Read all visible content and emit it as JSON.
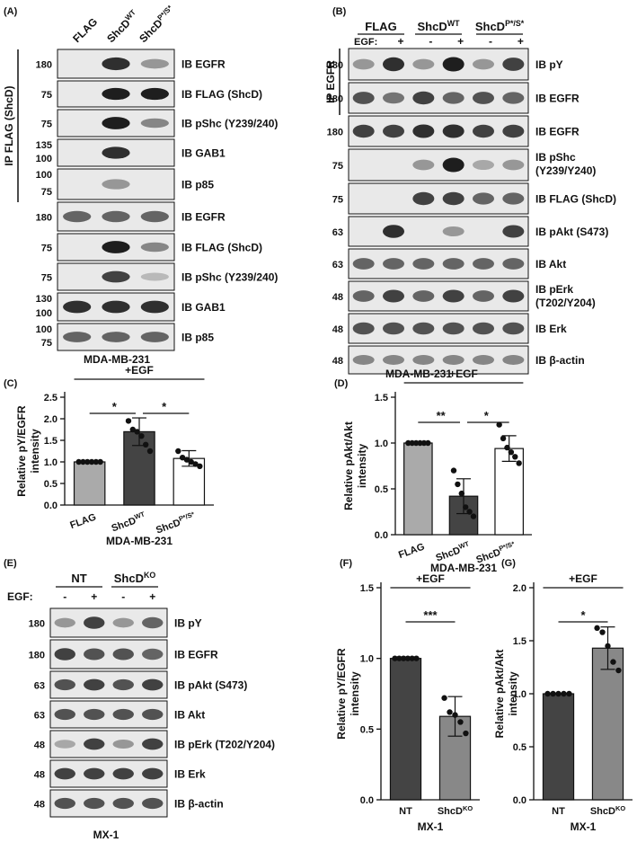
{
  "panels": {
    "A": {
      "letter": "(A)",
      "lanes": [
        "FLAG",
        "ShcD",
        "ShcD"
      ],
      "lane_sups": [
        "",
        "WT",
        "P*/S*"
      ],
      "ip_label": "IP FLAG (ShcD)",
      "caption": "MDA-MB-231",
      "blots": [
        {
          "mw": [
            "180"
          ],
          "label": "IB EGFR",
          "bands": [
            0,
            0.9,
            0.3
          ]
        },
        {
          "mw": [
            "75"
          ],
          "label": "IB FLAG (ShcD)",
          "bands": [
            0,
            1,
            1
          ]
        },
        {
          "mw": [
            "75"
          ],
          "label": "IB pShc (Y239/240)",
          "bands": [
            0,
            1,
            0.4
          ]
        },
        {
          "mw": [
            "135",
            "100"
          ],
          "label": "IB GAB1",
          "bands": [
            0,
            0.9,
            0
          ]
        },
        {
          "mw": [
            "100",
            "75"
          ],
          "label": "IB p85",
          "bands": [
            0,
            0.3,
            0
          ]
        },
        {
          "mw": [
            "180"
          ],
          "label": "IB EGFR",
          "bands": [
            0.6,
            0.6,
            0.6
          ]
        },
        {
          "mw": [
            "75"
          ],
          "label": "IB FLAG (ShcD)",
          "bands": [
            0,
            1,
            0.4
          ]
        },
        {
          "mw": [
            "75"
          ],
          "label": "IB pShc (Y239/240)",
          "bands": [
            0,
            0.8,
            0.1
          ]
        },
        {
          "mw": [
            "130",
            "100"
          ],
          "label": "IB GAB1",
          "bands": [
            0.9,
            0.9,
            0.9
          ]
        },
        {
          "mw": [
            "100",
            "75"
          ],
          "label": "IB p85",
          "bands": [
            0.6,
            0.6,
            0.6
          ]
        }
      ]
    },
    "B": {
      "letter": "(B)",
      "groups": [
        "FLAG",
        "ShcD",
        "ShcD"
      ],
      "group_sups": [
        "",
        "WT",
        "P*/S*"
      ],
      "egf_label": "EGF:",
      "egf_signs": [
        "-",
        "+",
        "-",
        "+",
        "-",
        "+"
      ],
      "ip_label": "IP EGFR",
      "caption": "MDA-MB-231",
      "blots": [
        {
          "mw": "180",
          "label": [
            "IB pY"
          ],
          "bands": [
            0.3,
            0.9,
            0.3,
            1,
            0.3,
            0.8
          ]
        },
        {
          "mw": "180",
          "label": [
            "IB EGFR"
          ],
          "bands": [
            0.7,
            0.5,
            0.8,
            0.6,
            0.7,
            0.6
          ]
        },
        {
          "mw": "180",
          "label": [
            "IB EGFR"
          ],
          "bands": [
            0.8,
            0.8,
            0.9,
            0.9,
            0.8,
            0.8
          ]
        },
        {
          "mw": "75",
          "label": [
            "IB pShc",
            "(Y239/Y240)"
          ],
          "bands": [
            0,
            0,
            0.3,
            1,
            0.2,
            0.3
          ]
        },
        {
          "mw": "75",
          "label": [
            "IB FLAG (ShcD)"
          ],
          "bands": [
            0,
            0,
            0.8,
            0.8,
            0.6,
            0.6
          ]
        },
        {
          "mw": "63",
          "label": [
            "IB pAkt (S473)"
          ],
          "bands": [
            0,
            0.9,
            0,
            0.3,
            0,
            0.8
          ]
        },
        {
          "mw": "63",
          "label": [
            "IB Akt"
          ],
          "bands": [
            0.6,
            0.6,
            0.6,
            0.6,
            0.6,
            0.6
          ]
        },
        {
          "mw": "48",
          "label": [
            "IB pErk",
            "(T202/Y204)"
          ],
          "bands": [
            0.6,
            0.8,
            0.6,
            0.8,
            0.6,
            0.8
          ]
        },
        {
          "mw": "48",
          "label": [
            "IB Erk"
          ],
          "bands": [
            0.7,
            0.7,
            0.7,
            0.7,
            0.7,
            0.7
          ]
        },
        {
          "mw": "48",
          "label": [
            "IB β-actin"
          ],
          "bands": [
            0.4,
            0.4,
            0.4,
            0.4,
            0.4,
            0.4
          ]
        }
      ]
    },
    "C": {
      "letter": "(C)",
      "caption": "MDA-MB-231",
      "egf_label": "+EGF",
      "sig": [
        "*",
        "*"
      ],
      "ylabel": [
        "Relative pY/EGFR",
        "intensity"
      ]
    },
    "D": {
      "letter": "(D)",
      "caption": "MDA-MB-231",
      "egf_label": "+EGF",
      "sig": [
        "**",
        "*"
      ],
      "ylabel": [
        "Relative pAkt/Akt",
        "intensity"
      ]
    },
    "E": {
      "letter": "(E)",
      "groups": [
        "NT",
        "ShcD"
      ],
      "group_sups": [
        "",
        "KO"
      ],
      "egf_label": "EGF:",
      "egf_signs": [
        "-",
        "+",
        "-",
        "+"
      ],
      "caption": "MX-1",
      "blots": [
        {
          "mw": "180",
          "label": "IB pY",
          "bands": [
            0.3,
            0.8,
            0.3,
            0.6
          ]
        },
        {
          "mw": "180",
          "label": "IB EGFR",
          "bands": [
            0.8,
            0.7,
            0.7,
            0.6
          ]
        },
        {
          "mw": "63",
          "label": "IB pAkt (S473)",
          "bands": [
            0.7,
            0.8,
            0.7,
            0.8
          ]
        },
        {
          "mw": "63",
          "label": "IB Akt",
          "bands": [
            0.7,
            0.7,
            0.7,
            0.7
          ]
        },
        {
          "mw": "48",
          "label": "IB pErk (T202/Y204)",
          "bands": [
            0.2,
            0.8,
            0.3,
            0.8
          ]
        },
        {
          "mw": "48",
          "label": "IB Erk",
          "bands": [
            0.8,
            0.8,
            0.8,
            0.8
          ]
        },
        {
          "mw": "48",
          "label": "IB β-actin",
          "bands": [
            0.7,
            0.7,
            0.7,
            0.7
          ]
        }
      ]
    },
    "F": {
      "letter": "(F)",
      "caption": "MX-1",
      "egf_label": "+EGF",
      "sig": [
        "***"
      ],
      "ylabel": [
        "Relative pY/EGFR",
        "intensity"
      ]
    },
    "G": {
      "letter": "(G)",
      "caption": "MX-1",
      "egf_label": "+EGF",
      "sig": [
        "*"
      ],
      "ylabel": [
        "Relative pAkt/Akt",
        "intensity"
      ]
    }
  },
  "chart_data": [
    {
      "panel": "C",
      "type": "bar",
      "categories": [
        "FLAG",
        "ShcD",
        "ShcD"
      ],
      "category_sups": [
        "",
        "WT",
        "P*/S*"
      ],
      "values": [
        1.0,
        1.7,
        1.08
      ],
      "errors": [
        0.0,
        0.32,
        0.18
      ],
      "points": [
        [
          1,
          1,
          1,
          1,
          1,
          1
        ],
        [
          1.95,
          1.75,
          1.7,
          1.6,
          1.4,
          1.25
        ],
        [
          1.25,
          1.1,
          1.05,
          1.0,
          0.95,
          0.9
        ]
      ],
      "colors": [
        "#aaaaaa",
        "#444444",
        "#ffffff"
      ],
      "ylim": [
        0,
        2.5
      ],
      "yticks": [
        "0.0",
        "0.5",
        "1.0",
        "1.5",
        "2.0",
        "2.5"
      ],
      "grid": false
    },
    {
      "panel": "D",
      "type": "bar",
      "categories": [
        "FLAG",
        "ShcD",
        "ShcD"
      ],
      "category_sups": [
        "",
        "WT",
        "P*/S*"
      ],
      "values": [
        1.0,
        0.42,
        0.94
      ],
      "errors": [
        0.0,
        0.19,
        0.14
      ],
      "points": [
        [
          1,
          1,
          1,
          1,
          1,
          1
        ],
        [
          0.7,
          0.55,
          0.45,
          0.3,
          0.25,
          0.2
        ],
        [
          1.2,
          1.05,
          0.95,
          0.9,
          0.85,
          0.78
        ]
      ],
      "colors": [
        "#aaaaaa",
        "#444444",
        "#ffffff"
      ],
      "ylim": [
        0,
        1.5
      ],
      "yticks": [
        "0.0",
        "0.5",
        "1.0",
        "1.5"
      ],
      "grid": false
    },
    {
      "panel": "F",
      "type": "bar",
      "categories": [
        "NT",
        "ShcD"
      ],
      "category_sups": [
        "",
        "KO"
      ],
      "values": [
        1.0,
        0.59
      ],
      "errors": [
        0.0,
        0.14
      ],
      "points": [
        [
          1,
          1,
          1,
          1,
          1,
          1
        ],
        [
          0.72,
          0.62,
          0.6,
          0.55,
          0.47
        ]
      ],
      "colors": [
        "#444444",
        "#888888"
      ],
      "ylim": [
        0,
        1.5
      ],
      "yticks": [
        "0.0",
        "0.5",
        "1.0",
        "1.5"
      ],
      "grid": false
    },
    {
      "panel": "G",
      "type": "bar",
      "categories": [
        "NT",
        "ShcD"
      ],
      "category_sups": [
        "",
        "KO"
      ],
      "values": [
        1.0,
        1.43
      ],
      "errors": [
        0.0,
        0.2
      ],
      "points": [
        [
          1,
          1,
          1,
          1,
          1
        ],
        [
          1.62,
          1.58,
          1.45,
          1.3,
          1.22
        ]
      ],
      "colors": [
        "#444444",
        "#888888"
      ],
      "ylim": [
        0,
        2.0
      ],
      "yticks": [
        "0.0",
        "0.5",
        "1.0",
        "1.5",
        "2.0"
      ],
      "grid": false
    }
  ]
}
